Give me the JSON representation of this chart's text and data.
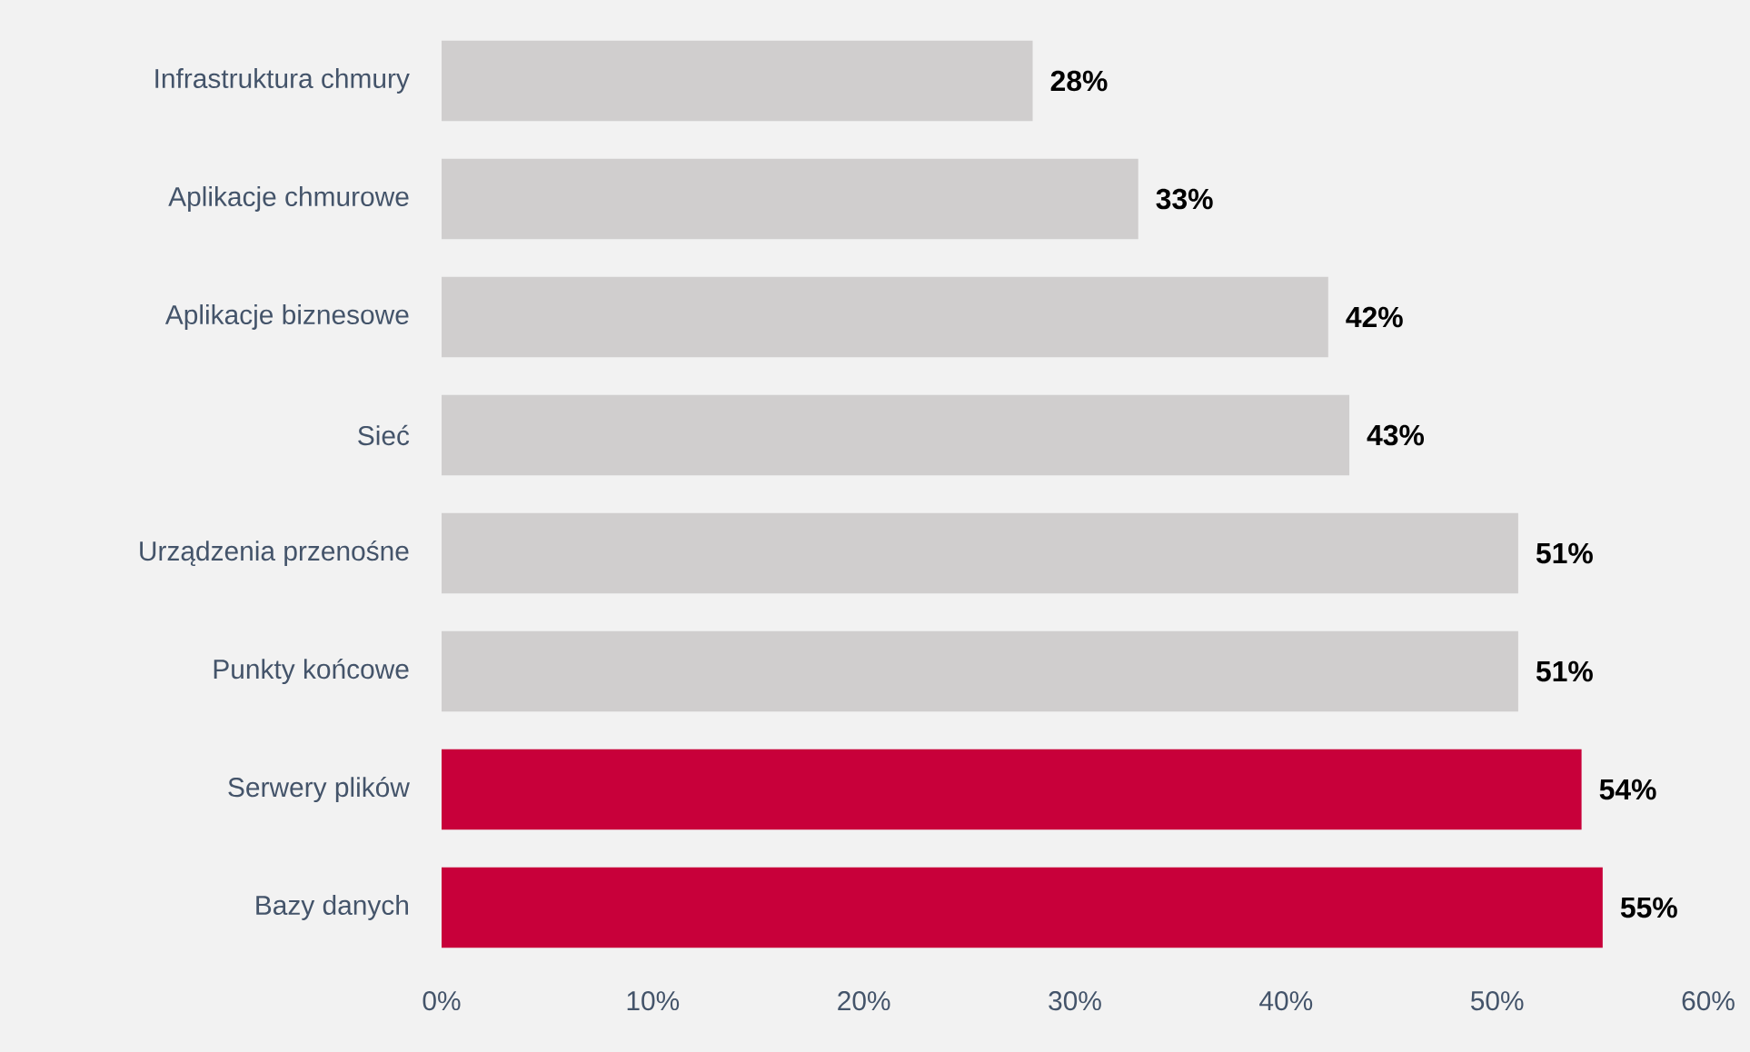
{
  "chart_data": {
    "type": "bar",
    "orientation": "horizontal",
    "categories": [
      "Infrastruktura chmury",
      "Aplikacje chmurowe",
      "Aplikacje biznesowe",
      "Sieć",
      "Urządzenia przenośne",
      "Punkty końcowe",
      "Serwery plików",
      "Bazy danych"
    ],
    "values": [
      28,
      33,
      42,
      43,
      51,
      51,
      54,
      55
    ],
    "colors": [
      "#d0cece",
      "#d0cece",
      "#d0cece",
      "#d0cece",
      "#d0cece",
      "#d0cece",
      "#c8003a",
      "#c8003a"
    ],
    "value_labels": [
      "28%",
      "33%",
      "42%",
      "43%",
      "51%",
      "51%",
      "54%",
      "55%"
    ],
    "xlim": [
      0,
      60
    ],
    "xticks": [
      {
        "value": 0,
        "label": "0%"
      },
      {
        "value": 10,
        "label": "10%"
      },
      {
        "value": 20,
        "label": "20%"
      },
      {
        "value": 30,
        "label": "30%"
      },
      {
        "value": 40,
        "label": "40%"
      },
      {
        "value": 50,
        "label": "50%"
      },
      {
        "value": 60,
        "label": "60%"
      }
    ]
  }
}
